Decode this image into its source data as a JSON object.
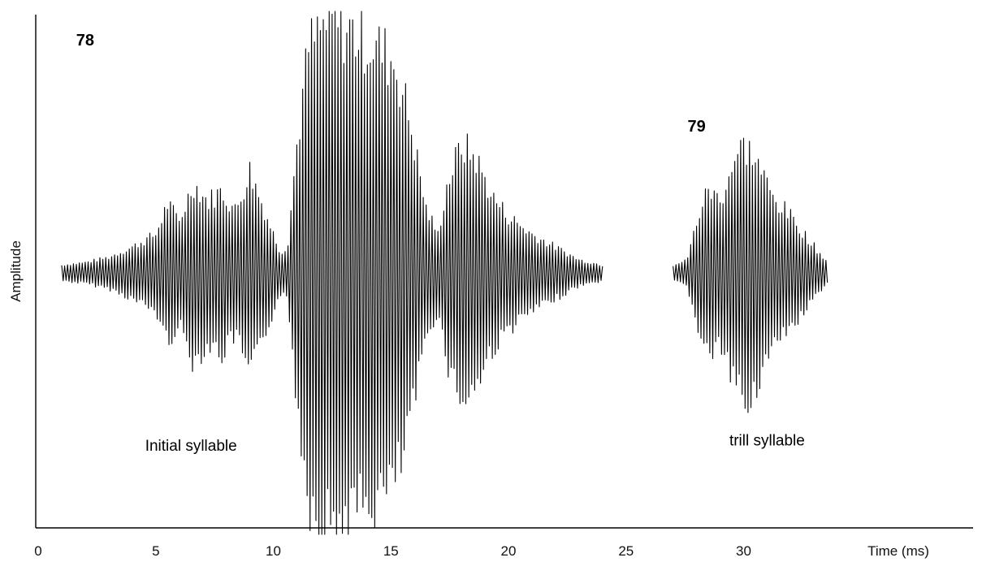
{
  "chart_data": {
    "type": "line",
    "title": "",
    "xlabel": "Time (ms)",
    "ylabel": "Amplitude",
    "xlim": [
      0,
      36
    ],
    "ylim": [
      -1,
      1
    ],
    "x_ticks": [
      0,
      5,
      10,
      15,
      20,
      25,
      30
    ],
    "grid": false,
    "legend": "none",
    "annotations": [
      {
        "id": "pulse-78",
        "text": "78",
        "x": 2.0,
        "y": 0.87
      },
      {
        "id": "pulse-79",
        "text": "79",
        "x": 28.0,
        "y": 0.54
      },
      {
        "id": "initial-syllable",
        "text": "Initial syllable",
        "x": 6.5,
        "y": -0.68
      },
      {
        "id": "trill-syllable",
        "text": "trill syllable",
        "x": 31.0,
        "y": -0.66
      }
    ],
    "series": [
      {
        "id": "syllable-1",
        "carrier_period_ms": 0.125,
        "envelope": [
          [
            1.0,
            0.03
          ],
          [
            2.0,
            0.04
          ],
          [
            3.0,
            0.06
          ],
          [
            4.0,
            0.1
          ],
          [
            5.0,
            0.15
          ],
          [
            5.5,
            0.27
          ],
          [
            6.0,
            0.2
          ],
          [
            6.6,
            0.35
          ],
          [
            7.2,
            0.28
          ],
          [
            7.8,
            0.32
          ],
          [
            8.4,
            0.24
          ],
          [
            9.0,
            0.4
          ],
          [
            9.6,
            0.25
          ],
          [
            10.3,
            0.08
          ],
          [
            10.6,
            0.1
          ],
          [
            11.0,
            0.5
          ],
          [
            11.5,
            0.88
          ],
          [
            12.3,
            0.98
          ],
          [
            13.3,
            0.95
          ],
          [
            14.5,
            0.88
          ],
          [
            15.2,
            0.82
          ],
          [
            15.8,
            0.6
          ],
          [
            16.5,
            0.25
          ],
          [
            17.0,
            0.15
          ],
          [
            17.4,
            0.35
          ],
          [
            18.0,
            0.5
          ],
          [
            18.6,
            0.45
          ],
          [
            19.3,
            0.3
          ],
          [
            20.0,
            0.22
          ],
          [
            21.0,
            0.15
          ],
          [
            22.0,
            0.1
          ],
          [
            23.0,
            0.05
          ],
          [
            24.0,
            0.03
          ]
        ]
      },
      {
        "id": "syllable-2",
        "carrier_period_ms": 0.125,
        "envelope": [
          [
            27.0,
            0.03
          ],
          [
            27.6,
            0.05
          ],
          [
            28.0,
            0.2
          ],
          [
            28.5,
            0.33
          ],
          [
            29.0,
            0.28
          ],
          [
            29.5,
            0.42
          ],
          [
            30.0,
            0.5
          ],
          [
            30.5,
            0.45
          ],
          [
            31.2,
            0.3
          ],
          [
            32.0,
            0.22
          ],
          [
            32.6,
            0.15
          ],
          [
            33.2,
            0.08
          ],
          [
            33.6,
            0.04
          ]
        ]
      }
    ]
  }
}
